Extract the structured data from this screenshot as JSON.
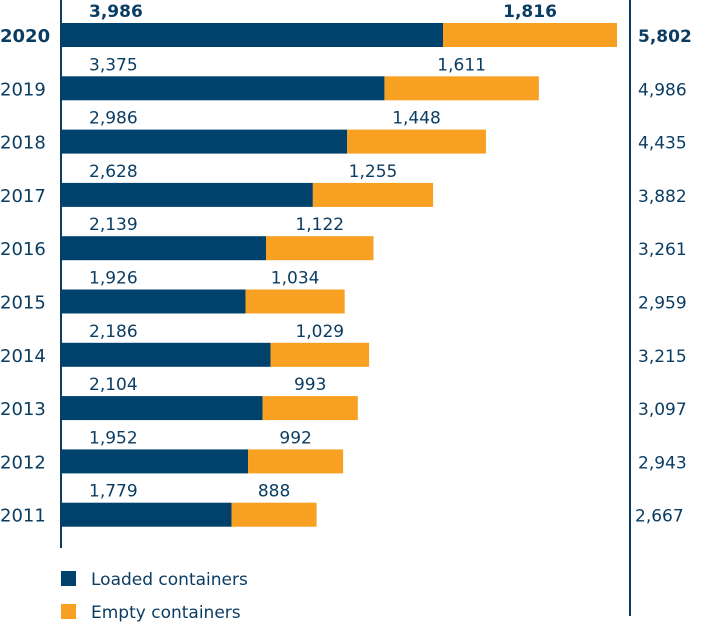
{
  "chart_data": {
    "type": "bar",
    "orientation": "horizontal",
    "stacked": true,
    "categories": [
      "2020",
      "2019",
      "2018",
      "2017",
      "2016",
      "2015",
      "2014",
      "2013",
      "2012",
      "2011"
    ],
    "series": [
      {
        "name": "Loaded containers",
        "color": "#00426b",
        "values": [
          3986,
          3375,
          2986,
          2628,
          2139,
          1926,
          2186,
          2104,
          1952,
          1779
        ]
      },
      {
        "name": "Empty containers",
        "color": "#f7a021",
        "values": [
          1816,
          1611,
          1448,
          1255,
          1122,
          1034,
          1029,
          993,
          992,
          888
        ]
      }
    ],
    "totals": [
      5802,
      4986,
      4435,
      3882,
      3261,
      2959,
      3215,
      3097,
      2943,
      2667
    ],
    "value_labels": {
      "loaded": [
        "3,986",
        "3,375",
        "2,986",
        "2,628",
        "2,139",
        "1,926",
        "2,186",
        "2,104",
        "1,952",
        "1,779"
      ],
      "empty": [
        "1,816",
        "1,611",
        "1,448",
        "1,255",
        "1,122",
        "1,034",
        "1,029",
        "993",
        "992",
        "888"
      ],
      "totals": [
        "5,802",
        "4,986",
        "4,435",
        "3,882",
        "3,261",
        "2,959",
        "3,215",
        "3,097",
        "2,943",
        "2,667"
      ]
    },
    "highlight_category": "2020",
    "xlim": [
      0,
      5802
    ],
    "grid": false,
    "legend_position": "bottom-left",
    "text_color": "#0b3d63"
  }
}
